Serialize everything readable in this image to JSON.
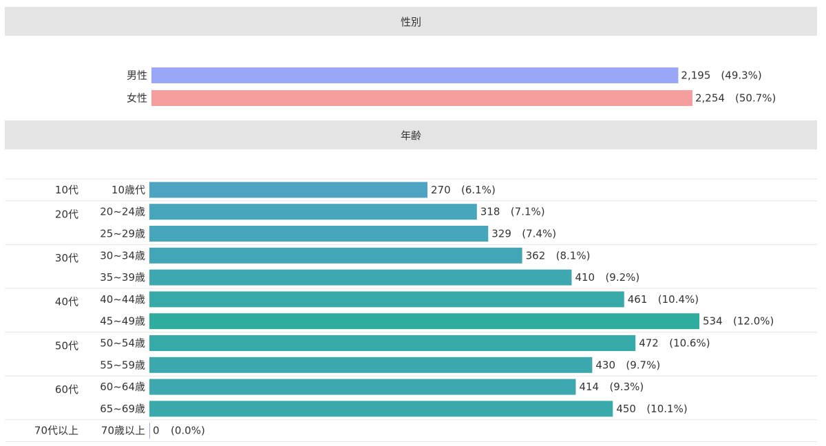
{
  "gender_section": {
    "title": "性別"
  },
  "age_section": {
    "title": "年齢"
  },
  "colors": {
    "male": "#9aa7f8",
    "female": "#f49e9e",
    "age_gradient_start": "#5ba0d4",
    "age_gradient_end": "#2eac9e",
    "header_bg": "#e4e4e4",
    "divider": "#e6e6e6"
  },
  "chart_data": [
    {
      "type": "bar",
      "orientation": "horizontal",
      "title": "性別",
      "categories": [
        "男性",
        "女性"
      ],
      "values": [
        2195,
        2254
      ],
      "value_labels": [
        "2,195",
        "2,254"
      ],
      "percent_labels": [
        "(49.3%)",
        "(50.7%)"
      ],
      "colors": [
        "#9aa7f8",
        "#f49e9e"
      ],
      "grid": false
    },
    {
      "type": "bar",
      "orientation": "horizontal",
      "title": "年齢",
      "groups": [
        {
          "label": "10代",
          "categories": [
            "10歳代"
          ],
          "values": [
            270
          ],
          "percent_labels": [
            "(6.1%)"
          ]
        },
        {
          "label": "20代",
          "categories": [
            "20~24歳",
            "25~29歳"
          ],
          "values": [
            318,
            329
          ],
          "percent_labels": [
            "(7.1%)",
            "(7.4%)"
          ]
        },
        {
          "label": "30代",
          "categories": [
            "30~34歳",
            "35~39歳"
          ],
          "values": [
            362,
            410
          ],
          "percent_labels": [
            "(8.1%)",
            "(9.2%)"
          ]
        },
        {
          "label": "40代",
          "categories": [
            "40~44歳",
            "45~49歳"
          ],
          "values": [
            461,
            534
          ],
          "percent_labels": [
            "(10.4%)",
            "(12.0%)"
          ]
        },
        {
          "label": "50代",
          "categories": [
            "50~54歳",
            "55~59歳"
          ],
          "values": [
            472,
            430
          ],
          "percent_labels": [
            "(10.6%)",
            "(9.7%)"
          ]
        },
        {
          "label": "60代",
          "categories": [
            "60~64歳",
            "65~69歳"
          ],
          "values": [
            414,
            450
          ],
          "percent_labels": [
            "(9.3%)",
            "(10.1%)"
          ]
        },
        {
          "label": "70代以上",
          "categories": [
            "70歳以上"
          ],
          "values": [
            0
          ],
          "percent_labels": [
            "(0.0%)"
          ]
        }
      ],
      "grid": false
    }
  ]
}
